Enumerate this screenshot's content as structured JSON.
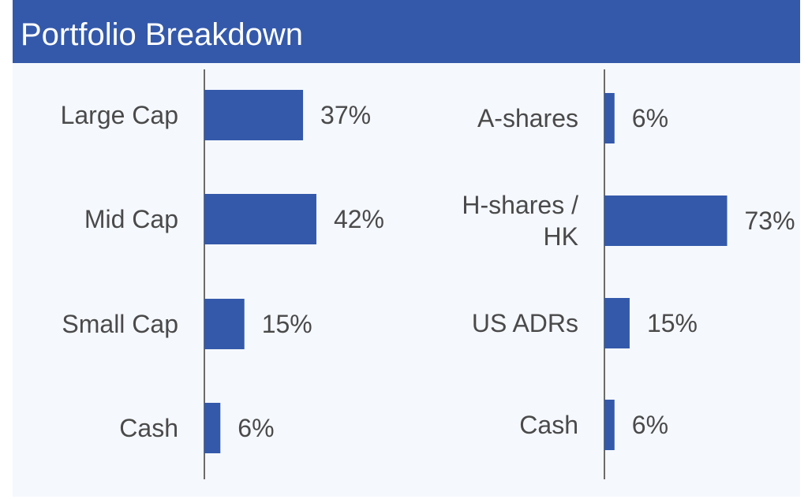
{
  "header": {
    "title": "Portfolio Breakdown"
  },
  "colors": {
    "header": "#3459aa",
    "bar": "#3459aa",
    "axis": "#6b6b6b",
    "label": "#4a4a4a",
    "background": "#f5f8fd"
  },
  "chart_data": [
    {
      "type": "bar",
      "orientation": "horizontal",
      "categories": [
        "Large Cap",
        "Mid Cap",
        "Small Cap",
        "Cash"
      ],
      "values": [
        37,
        42,
        15,
        6
      ],
      "value_labels": [
        "37%",
        "42%",
        "15%",
        "6%"
      ],
      "xlim": [
        0,
        100
      ],
      "grid": false
    },
    {
      "type": "bar",
      "orientation": "horizontal",
      "categories": [
        "A-shares",
        "H-shares / HK",
        "US ADRs",
        "Cash"
      ],
      "category_lines": [
        [
          "A-shares"
        ],
        [
          "H-shares /",
          "HK"
        ],
        [
          "US ADRs"
        ],
        [
          "Cash"
        ]
      ],
      "values": [
        6,
        73,
        15,
        6
      ],
      "value_labels": [
        "6%",
        "73%",
        "15%",
        "6%"
      ],
      "xlim": [
        0,
        100
      ],
      "grid": false
    }
  ]
}
